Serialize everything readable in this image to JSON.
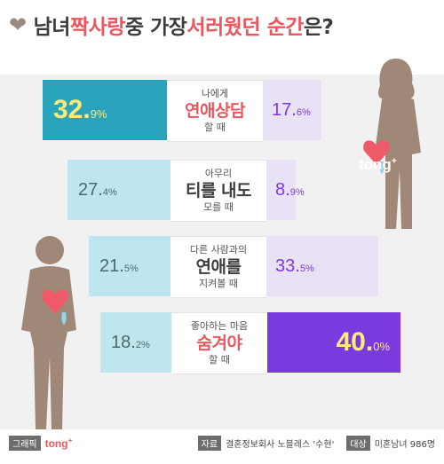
{
  "title": {
    "heart_icon": "heart-icon",
    "part1": "남녀 ",
    "part2": "짝사랑",
    "part3": " 중 가장 ",
    "part4": "서러웠던 순간",
    "part5": "은?"
  },
  "colors": {
    "male_strong": "#2aa3bd",
    "male_light": "#bfe6ee",
    "female_strong": "#7a3ae0",
    "female_light": "#e9e1f5",
    "accent": "#e8585e",
    "highlight": "#ffe97a"
  },
  "chart_data": {
    "type": "bar",
    "orientation": "diverging-horizontal",
    "series": [
      {
        "name": "",
        "values": [
          32.9,
          27.4,
          21.5,
          18.2
        ]
      },
      {
        "name": "",
        "values": [
          17.6,
          8.9,
          33.5,
          40.0
        ]
      }
    ],
    "categories": [
      {
        "top": "나에게",
        "main": "연애상담",
        "bottom": "할 때",
        "emph": true
      },
      {
        "top": "아무리",
        "main": "티를 내도",
        "bottom": "모를 때",
        "emph": false
      },
      {
        "top": "다른 사람과의",
        "main": "연애를",
        "bottom": "지켜볼 때",
        "emph": false
      },
      {
        "top": "좋아하는 마음",
        "main": "숨겨야",
        "bottom": "할 때",
        "emph": true
      }
    ],
    "value_labels": {
      "left": [
        {
          "num": "32.",
          "dec": "9",
          "pct": "%"
        },
        {
          "num": "27.",
          "dec": "4",
          "pct": "%"
        },
        {
          "num": "21.",
          "dec": "5",
          "pct": "%"
        },
        {
          "num": "18.",
          "dec": "2",
          "pct": "%"
        }
      ],
      "right": [
        {
          "num": "17.",
          "dec": "6",
          "pct": "%"
        },
        {
          "num": "8.",
          "dec": "9",
          "pct": "%"
        },
        {
          "num": "33.",
          "dec": "5",
          "pct": "%"
        },
        {
          "num": "40.",
          "dec": "0",
          "pct": "%"
        }
      ]
    },
    "highlight_left": 0,
    "highlight_right": 3
  },
  "watermark": {
    "text": "tong",
    "plus": "+"
  },
  "footer": {
    "tag_graphic": "그래픽",
    "brand": "tong",
    "brand_plus": "+",
    "tag_source": "자료",
    "source": "결혼정보회사 노블레스 '수현'",
    "tag_target": "대상",
    "target": "미혼남녀 986명"
  }
}
